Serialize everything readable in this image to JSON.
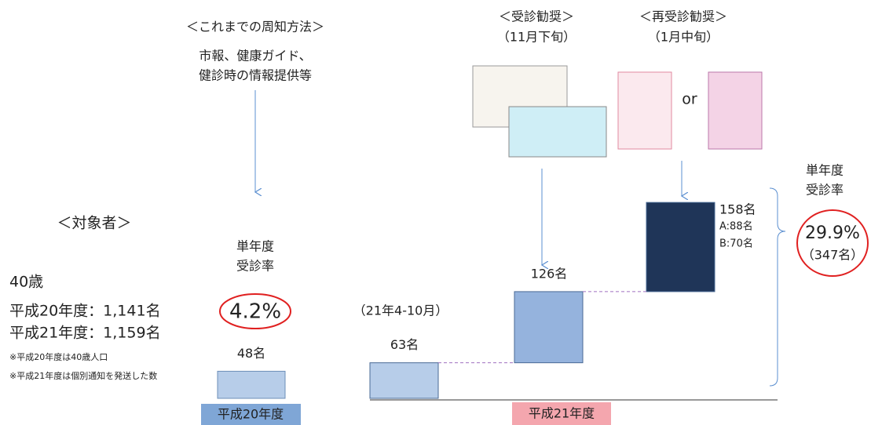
{
  "previous": {
    "heading": "＜これまでの周知方法＞",
    "lines": [
      "市報、健康ガイド、",
      "健診時の情報提供等"
    ]
  },
  "target": {
    "heading": "＜対象者＞",
    "age": "40歳",
    "counts": [
      "平成20年度：1,141名",
      "平成21年度：1,159名"
    ],
    "notes": [
      "※平成20年度は40歳人口",
      "※平成21年度は個別通知を発送した数"
    ]
  },
  "year20": {
    "rate_heading": [
      "単年度",
      "受診率"
    ],
    "rate": "4.2%",
    "label": "平成20年度",
    "bars": [
      {
        "value": 48,
        "label": "48名"
      }
    ]
  },
  "year21": {
    "period": "（21年4-10月）",
    "label": "平成21年度",
    "rate_heading": [
      "単年度",
      "受診率"
    ],
    "rate": "29.9%",
    "rate_count": "（347名）",
    "bars": [
      {
        "value": 63,
        "label": "63名"
      },
      {
        "value": 126,
        "label": "126名"
      },
      {
        "value": 158,
        "label": "158名",
        "breakdown": [
          "A:88名",
          "B:70名"
        ]
      }
    ]
  },
  "recommend": {
    "heading": "＜受診勧奨＞",
    "timing": "（11月下旬）"
  },
  "rerecommend": {
    "heading": "＜再受診勧奨＞",
    "timing": "（1月中旬）",
    "or": "or"
  }
}
